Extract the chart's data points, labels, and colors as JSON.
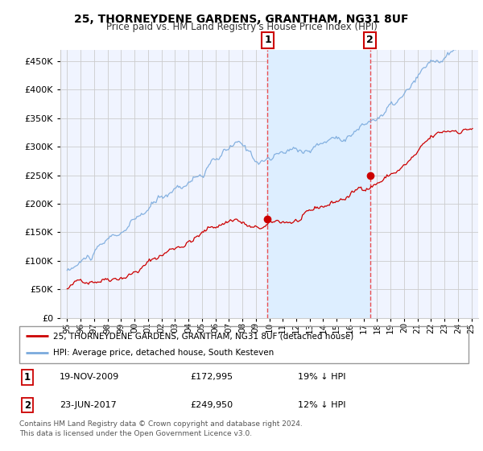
{
  "title1": "25, THORNEYDENE GARDENS, GRANTHAM, NG31 8UF",
  "title2": "Price paid vs. HM Land Registry's House Price Index (HPI)",
  "legend_line1": "25, THORNEYDENE GARDENS, GRANTHAM, NG31 8UF (detached house)",
  "legend_line2": "HPI: Average price, detached house, South Kesteven",
  "footnote": "Contains HM Land Registry data © Crown copyright and database right 2024.\nThis data is licensed under the Open Government Licence v3.0.",
  "sale1_date": "19-NOV-2009",
  "sale1_price": "£172,995",
  "sale1_hpi": "19% ↓ HPI",
  "sale1_x": 2009.88,
  "sale1_y": 172995,
  "sale2_date": "23-JUN-2017",
  "sale2_price": "£249,950",
  "sale2_hpi": "12% ↓ HPI",
  "sale2_x": 2017.47,
  "sale2_y": 249950,
  "vline1_x": 2009.88,
  "vline2_x": 2017.47,
  "ylim": [
    0,
    470000
  ],
  "xlim": [
    1994.5,
    2025.5
  ],
  "property_color": "#cc0000",
  "hpi_color": "#7aaadd",
  "vline_color": "#ee3333",
  "shade_color": "#ddeeff",
  "background_color": "#ffffff",
  "plot_bg_color": "#f0f4ff",
  "grid_color": "#cccccc"
}
